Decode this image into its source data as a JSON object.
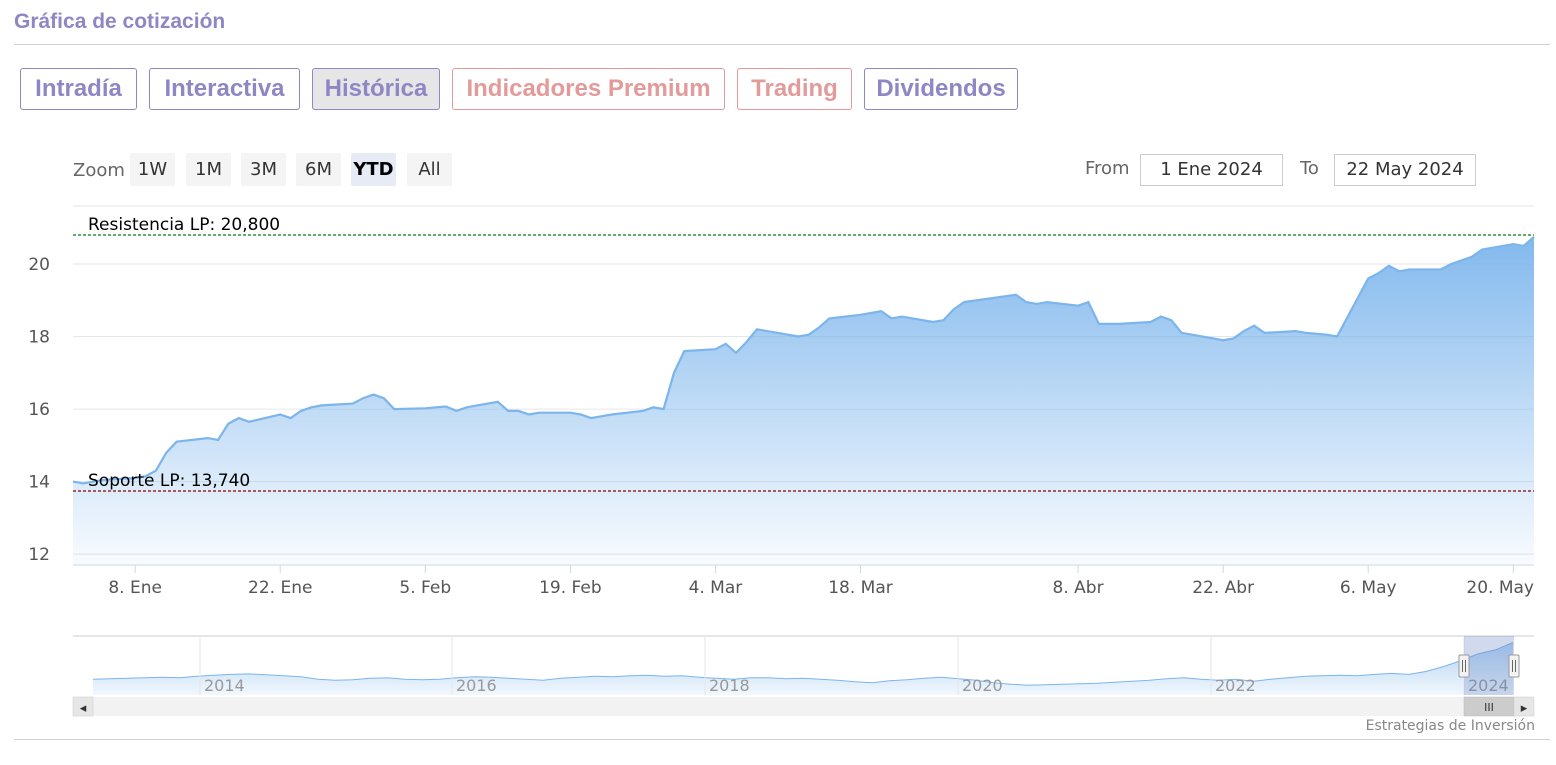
{
  "section": {
    "title": "Gráfica de cotización"
  },
  "tabs": [
    {
      "label": "Intradía",
      "state": "default"
    },
    {
      "label": "Interactiva",
      "state": "default"
    },
    {
      "label": "Histórica",
      "state": "active"
    },
    {
      "label": "Indicadores Premium",
      "state": "premium"
    },
    {
      "label": "Trading",
      "state": "premium"
    },
    {
      "label": "Dividendos",
      "state": "default"
    }
  ],
  "zoom": {
    "label": "Zoom",
    "buttons": [
      "1W",
      "1M",
      "3M",
      "6M",
      "YTD",
      "All"
    ],
    "selected": "YTD"
  },
  "range": {
    "from_label": "From",
    "from_value": "1 Ene 2024",
    "to_label": "To",
    "to_value": "22 May 2024"
  },
  "colors": {
    "series": "#7cb5ec",
    "resistance": "#0a7a0a",
    "support": "#8b0000",
    "tab_default": "#8f86c4",
    "tab_premium": "#e39a9a"
  },
  "chart_data": {
    "type": "area",
    "title": "",
    "xlabel": "",
    "ylabel": "",
    "ylim": [
      11.7,
      21.6
    ],
    "yticks": [
      12,
      14,
      16,
      18,
      20
    ],
    "xlim": [
      "2024-01-02",
      "2024-05-22"
    ],
    "xticks": [
      {
        "label": "8. Ene",
        "date": "2024-01-08"
      },
      {
        "label": "22. Ene",
        "date": "2024-01-22"
      },
      {
        "label": "5. Feb",
        "date": "2024-02-05"
      },
      {
        "label": "19. Feb",
        "date": "2024-02-19"
      },
      {
        "label": "4. Mar",
        "date": "2024-03-04"
      },
      {
        "label": "18. Mar",
        "date": "2024-03-18"
      },
      {
        "label": "8. Abr",
        "date": "2024-04-08"
      },
      {
        "label": "22. Abr",
        "date": "2024-04-22"
      },
      {
        "label": "6. May",
        "date": "2024-05-06"
      },
      {
        "label": "20. May",
        "date": "2024-05-20"
      }
    ],
    "grid": true,
    "legend": "none",
    "series": [
      {
        "x": [
          "2024-01-02",
          "2024-01-03",
          "2024-01-04",
          "2024-01-05",
          "2024-01-08",
          "2024-01-09",
          "2024-01-10",
          "2024-01-11",
          "2024-01-12",
          "2024-01-15",
          "2024-01-16",
          "2024-01-17",
          "2024-01-18",
          "2024-01-19",
          "2024-01-22",
          "2024-01-23",
          "2024-01-24",
          "2024-01-25",
          "2024-01-26",
          "2024-01-29",
          "2024-01-30",
          "2024-01-31",
          "2024-02-01",
          "2024-02-02",
          "2024-02-05",
          "2024-02-06",
          "2024-02-07",
          "2024-02-08",
          "2024-02-09",
          "2024-02-12",
          "2024-02-13",
          "2024-02-14",
          "2024-02-15",
          "2024-02-16",
          "2024-02-19",
          "2024-02-20",
          "2024-02-21",
          "2024-02-22",
          "2024-02-23",
          "2024-02-26",
          "2024-02-27",
          "2024-02-28",
          "2024-02-29",
          "2024-03-01",
          "2024-03-04",
          "2024-03-05",
          "2024-03-06",
          "2024-03-07",
          "2024-03-08",
          "2024-03-11",
          "2024-03-12",
          "2024-03-13",
          "2024-03-14",
          "2024-03-15",
          "2024-03-18",
          "2024-03-19",
          "2024-03-20",
          "2024-03-21",
          "2024-03-22",
          "2024-03-25",
          "2024-03-26",
          "2024-03-27",
          "2024-03-28",
          "2024-04-02",
          "2024-04-03",
          "2024-04-04",
          "2024-04-05",
          "2024-04-08",
          "2024-04-09",
          "2024-04-10",
          "2024-04-11",
          "2024-04-12",
          "2024-04-15",
          "2024-04-16",
          "2024-04-17",
          "2024-04-18",
          "2024-04-19",
          "2024-04-22",
          "2024-04-23",
          "2024-04-24",
          "2024-04-25",
          "2024-04-26",
          "2024-04-29",
          "2024-04-30",
          "2024-05-02",
          "2024-05-03",
          "2024-05-06",
          "2024-05-07",
          "2024-05-08",
          "2024-05-09",
          "2024-05-10",
          "2024-05-13",
          "2024-05-14",
          "2024-05-15",
          "2024-05-16",
          "2024-05-17",
          "2024-05-20",
          "2024-05-21",
          "2024-05-22"
        ],
        "values": [
          14.0,
          13.95,
          14.0,
          14.05,
          14.1,
          14.15,
          14.3,
          14.8,
          15.1,
          15.2,
          15.15,
          15.6,
          15.75,
          15.65,
          15.85,
          15.75,
          15.95,
          16.05,
          16.1,
          16.15,
          16.3,
          16.4,
          16.3,
          16.0,
          16.02,
          16.05,
          16.07,
          15.95,
          16.05,
          16.2,
          15.95,
          15.95,
          15.85,
          15.9,
          15.9,
          15.85,
          15.75,
          15.8,
          15.85,
          15.95,
          16.05,
          16.0,
          17.0,
          17.6,
          17.65,
          17.8,
          17.55,
          17.85,
          18.2,
          18.05,
          18.0,
          18.05,
          18.25,
          18.5,
          18.6,
          18.65,
          18.7,
          18.5,
          18.55,
          18.4,
          18.45,
          18.75,
          18.95,
          19.15,
          18.95,
          18.9,
          18.95,
          18.85,
          18.95,
          18.35,
          18.35,
          18.35,
          18.4,
          18.55,
          18.45,
          18.1,
          18.05,
          17.9,
          17.95,
          18.15,
          18.3,
          18.1,
          18.15,
          18.1,
          18.05,
          18.0,
          19.6,
          19.75,
          19.95,
          19.8,
          19.85,
          19.85,
          20.0,
          20.1,
          20.2,
          20.4,
          20.55,
          20.5,
          20.75
        ]
      }
    ],
    "annotations": [
      {
        "label": "Resistencia LP: 20,800",
        "value": 20.8,
        "style": "dashed",
        "color": "#0a7a0a"
      },
      {
        "label": "Soporte LP: 13,740",
        "value": 13.74,
        "style": "dashed",
        "color": "#8b0000"
      }
    ]
  },
  "navigator": {
    "year_labels": [
      "2014",
      "2016",
      "2018",
      "2020",
      "2022",
      "2024"
    ],
    "series": [
      13.2,
      13.3,
      13.4,
      13.5,
      13.6,
      13.5,
      13.8,
      14.0,
      14.2,
      14.3,
      14.1,
      13.9,
      13.7,
      13.2,
      13.0,
      13.1,
      13.4,
      13.5,
      13.2,
      13.1,
      13.2,
      13.5,
      13.7,
      13.6,
      13.4,
      13.2,
      13.0,
      13.4,
      13.6,
      13.8,
      13.7,
      13.9,
      14.0,
      13.8,
      13.9,
      13.6,
      13.4,
      13.2,
      13.5,
      13.5,
      13.3,
      13.4,
      13.2,
      13.0,
      12.7,
      12.5,
      12.9,
      13.1,
      13.4,
      13.6,
      13.3,
      13.0,
      12.5,
      12.2,
      12.0,
      12.1,
      12.2,
      12.3,
      12.4,
      12.6,
      12.8,
      13.0,
      13.3,
      13.5,
      13.2,
      13.0,
      13.2,
      12.8,
      13.2,
      13.5,
      13.8,
      13.9,
      14.0,
      13.9,
      14.2,
      14.4,
      14.2,
      14.8,
      15.8,
      17.0,
      18.4,
      19.2,
      20.7
    ],
    "scroll_left_arrow": "◂",
    "scroll_right_arrow": "▸",
    "scroll_grip": "III"
  },
  "credit": "Estrategias de Inversión"
}
